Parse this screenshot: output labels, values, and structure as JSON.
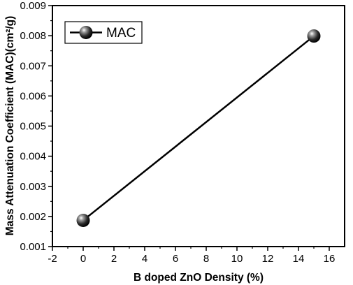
{
  "chart_data": {
    "type": "line",
    "xlabel": "B doped ZnO Density (%)",
    "ylabel": "Mass Attenuation Coefficient (MAC)(cm²/g)",
    "xlim": [
      -2,
      17
    ],
    "ylim": [
      0.001,
      0.009
    ],
    "x_ticks": [
      "-2",
      "0",
      "2",
      "4",
      "6",
      "8",
      "10",
      "12",
      "14",
      "16"
    ],
    "x_tick_values": [
      -2,
      0,
      2,
      4,
      6,
      8,
      10,
      12,
      14,
      16
    ],
    "y_ticks": [
      "0.001",
      "0.002",
      "0.003",
      "0.004",
      "0.005",
      "0.006",
      "0.007",
      "0.008",
      "0.009"
    ],
    "y_tick_values": [
      0.001,
      0.002,
      0.003,
      0.004,
      0.005,
      0.006,
      0.007,
      0.008,
      0.009
    ],
    "grid": false,
    "legend_position": "top-left",
    "series": [
      {
        "name": "MAC",
        "x": [
          0,
          15
        ],
        "y": [
          0.00187,
          0.00799
        ],
        "color": "#000000",
        "marker": "sphere"
      }
    ]
  }
}
